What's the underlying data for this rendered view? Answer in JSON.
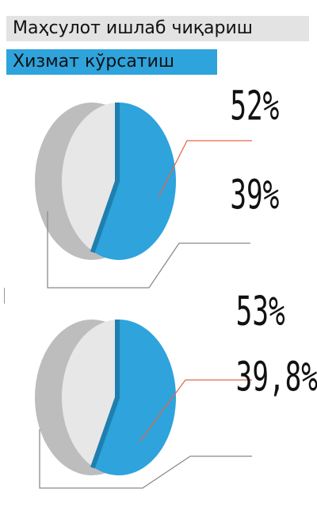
{
  "legend": [
    {
      "label": "Маҳсулот ишлаб чиқариш",
      "color": "#e3e3e3"
    },
    {
      "label": "Хизмат кўрсатиш",
      "color": "#2ea3dc"
    }
  ],
  "chart_data": [
    {
      "type": "pie",
      "categories": [
        "Хизмат кўрсатиш",
        "Маҳсулот ишлаб чиқариш"
      ],
      "values": [
        52,
        39
      ],
      "labels": [
        "52%",
        "39%"
      ]
    },
    {
      "type": "pie",
      "categories": [
        "Хизмат кўрсатиш",
        "Маҳсулот ишлаб чиқариш"
      ],
      "values": [
        53,
        39.8
      ],
      "labels": [
        "53%",
        "39,8%"
      ]
    }
  ],
  "colors": {
    "service": "#2ea3dc",
    "service_side": "#1f7fae",
    "production": "#e7e7e7",
    "production_side": "#bdbdbd",
    "leader_service": "#e06a4a",
    "leader_production": "#8a8a8a"
  }
}
